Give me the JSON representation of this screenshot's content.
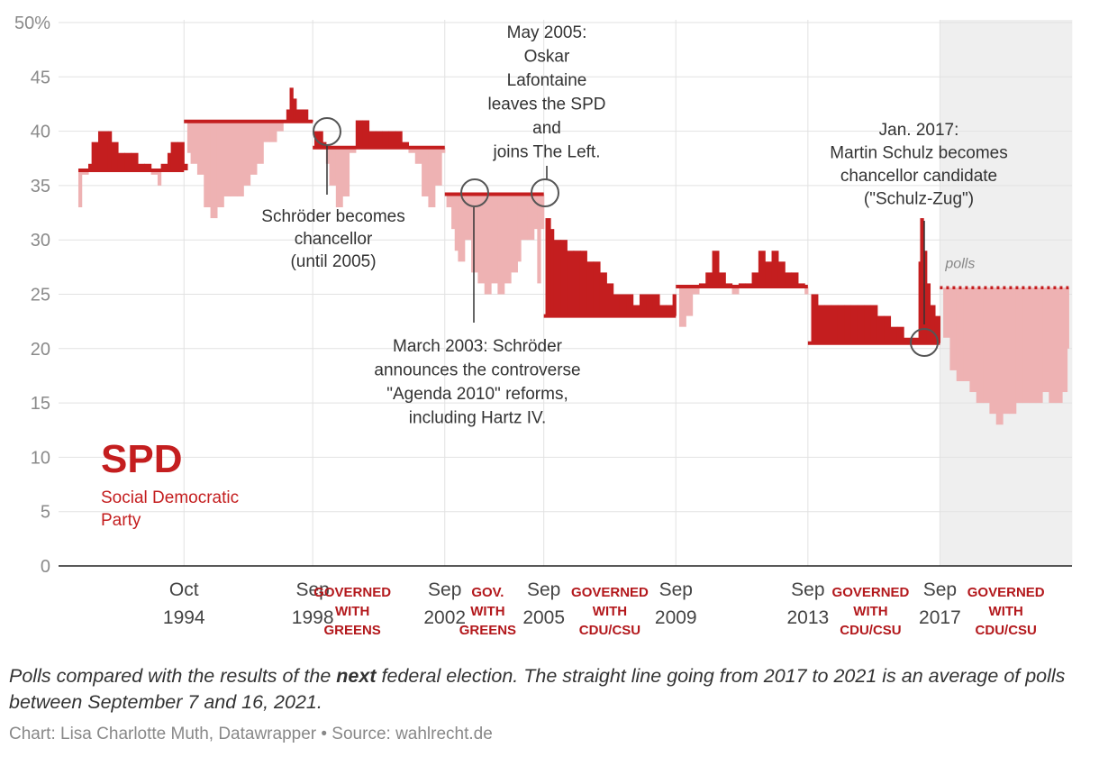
{
  "chart_data": {
    "type": "area",
    "title": "SPD",
    "subtitle": "Social Democratic Party",
    "y_tick_labels": [
      "50%",
      "45",
      "40",
      "35",
      "30",
      "25",
      "20",
      "15",
      "10",
      "5",
      "0"
    ],
    "ylim": [
      0,
      50
    ],
    "xlim": [
      1991.0,
      2021.7
    ],
    "x_ticks": [
      {
        "month": "Oct",
        "year": "1994",
        "x": 1994.8
      },
      {
        "month": "Sep",
        "year": "1998",
        "x": 1998.7
      },
      {
        "month": "Sep",
        "year": "2002",
        "x": 2002.7
      },
      {
        "month": "Sep",
        "year": "2005",
        "x": 2005.7
      },
      {
        "month": "Sep",
        "year": "2009",
        "x": 2009.7
      },
      {
        "month": "Sep",
        "year": "2013",
        "x": 2013.7
      },
      {
        "month": "Sep",
        "year": "2017",
        "x": 2017.7
      }
    ],
    "election_results": [
      {
        "from": 1991.6,
        "to": 1994.8,
        "value": 36.4
      },
      {
        "from": 1994.8,
        "to": 1998.7,
        "value": 40.9
      },
      {
        "from": 1998.7,
        "to": 2002.7,
        "value": 38.5
      },
      {
        "from": 2002.7,
        "to": 2005.7,
        "value": 34.2
      },
      {
        "from": 2005.7,
        "to": 2009.7,
        "value": 23.0
      },
      {
        "from": 2009.7,
        "to": 2013.7,
        "value": 25.7
      },
      {
        "from": 2013.7,
        "to": 2017.7,
        "value": 20.5
      }
    ],
    "poll_average": {
      "from": 2017.7,
      "to": 2021.6,
      "value": 25.6,
      "label": "polls"
    },
    "polls": [
      [
        1991.6,
        33
      ],
      [
        1991.7,
        36
      ],
      [
        1991.9,
        37
      ],
      [
        1992.0,
        39
      ],
      [
        1992.2,
        40
      ],
      [
        1992.5,
        40
      ],
      [
        1992.6,
        39
      ],
      [
        1992.8,
        38
      ],
      [
        1993.0,
        38
      ],
      [
        1993.2,
        38
      ],
      [
        1993.4,
        37
      ],
      [
        1993.6,
        37
      ],
      [
        1993.8,
        36
      ],
      [
        1994.0,
        35
      ],
      [
        1994.1,
        37
      ],
      [
        1994.3,
        38
      ],
      [
        1994.4,
        39
      ],
      [
        1994.6,
        39
      ],
      [
        1994.8,
        37
      ],
      [
        1994.9,
        38
      ],
      [
        1995.0,
        37
      ],
      [
        1995.2,
        36
      ],
      [
        1995.4,
        33
      ],
      [
        1995.6,
        32
      ],
      [
        1995.8,
        33
      ],
      [
        1996.0,
        34
      ],
      [
        1996.2,
        34
      ],
      [
        1996.4,
        34
      ],
      [
        1996.6,
        35
      ],
      [
        1996.8,
        36
      ],
      [
        1997.0,
        37
      ],
      [
        1997.2,
        39
      ],
      [
        1997.4,
        39
      ],
      [
        1997.6,
        40
      ],
      [
        1997.8,
        41
      ],
      [
        1997.9,
        42
      ],
      [
        1998.0,
        44
      ],
      [
        1998.1,
        43
      ],
      [
        1998.2,
        42
      ],
      [
        1998.4,
        42
      ],
      [
        1998.55,
        41
      ],
      [
        1998.75,
        40
      ],
      [
        1998.9,
        40
      ],
      [
        1999.0,
        39
      ],
      [
        1999.1,
        37
      ],
      [
        1999.2,
        35
      ],
      [
        1999.4,
        33
      ],
      [
        1999.6,
        34
      ],
      [
        1999.8,
        38
      ],
      [
        2000.0,
        41
      ],
      [
        2000.2,
        41
      ],
      [
        2000.4,
        40
      ],
      [
        2000.6,
        40
      ],
      [
        2000.8,
        40
      ],
      [
        2001.0,
        40
      ],
      [
        2001.2,
        40
      ],
      [
        2001.4,
        39
      ],
      [
        2001.6,
        38
      ],
      [
        2001.8,
        37
      ],
      [
        2002.0,
        34
      ],
      [
        2002.2,
        33
      ],
      [
        2002.4,
        35
      ],
      [
        2002.6,
        38
      ],
      [
        2002.75,
        33
      ],
      [
        2002.9,
        31
      ],
      [
        2003.0,
        29
      ],
      [
        2003.1,
        28
      ],
      [
        2003.3,
        30
      ],
      [
        2003.5,
        27
      ],
      [
        2003.7,
        26
      ],
      [
        2003.9,
        25
      ],
      [
        2004.1,
        26
      ],
      [
        2004.3,
        25
      ],
      [
        2004.5,
        26
      ],
      [
        2004.7,
        27
      ],
      [
        2004.9,
        28
      ],
      [
        2005.0,
        30
      ],
      [
        2005.2,
        30
      ],
      [
        2005.4,
        31
      ],
      [
        2005.5,
        26
      ],
      [
        2005.6,
        31
      ],
      [
        2005.75,
        32
      ],
      [
        2005.9,
        31
      ],
      [
        2006.0,
        30
      ],
      [
        2006.2,
        30
      ],
      [
        2006.4,
        29
      ],
      [
        2006.6,
        29
      ],
      [
        2006.8,
        29
      ],
      [
        2007.0,
        28
      ],
      [
        2007.2,
        28
      ],
      [
        2007.4,
        27
      ],
      [
        2007.6,
        26
      ],
      [
        2007.8,
        25
      ],
      [
        2008.0,
        25
      ],
      [
        2008.2,
        25
      ],
      [
        2008.4,
        24
      ],
      [
        2008.6,
        25
      ],
      [
        2008.8,
        25
      ],
      [
        2009.0,
        25
      ],
      [
        2009.2,
        24
      ],
      [
        2009.4,
        24
      ],
      [
        2009.6,
        25
      ],
      [
        2009.8,
        22
      ],
      [
        2010.0,
        23
      ],
      [
        2010.2,
        25
      ],
      [
        2010.4,
        26
      ],
      [
        2010.6,
        27
      ],
      [
        2010.8,
        29
      ],
      [
        2011.0,
        27
      ],
      [
        2011.2,
        26
      ],
      [
        2011.4,
        25
      ],
      [
        2011.6,
        26
      ],
      [
        2011.8,
        26
      ],
      [
        2012.0,
        27
      ],
      [
        2012.2,
        29
      ],
      [
        2012.4,
        28
      ],
      [
        2012.6,
        29
      ],
      [
        2012.8,
        28
      ],
      [
        2013.0,
        27
      ],
      [
        2013.2,
        27
      ],
      [
        2013.4,
        26
      ],
      [
        2013.6,
        25
      ],
      [
        2013.8,
        25
      ],
      [
        2014.0,
        24
      ],
      [
        2014.2,
        24
      ],
      [
        2014.4,
        24
      ],
      [
        2014.6,
        24
      ],
      [
        2014.8,
        24
      ],
      [
        2015.0,
        24
      ],
      [
        2015.2,
        24
      ],
      [
        2015.4,
        24
      ],
      [
        2015.6,
        24
      ],
      [
        2015.8,
        23
      ],
      [
        2016.0,
        23
      ],
      [
        2016.2,
        22
      ],
      [
        2016.4,
        22
      ],
      [
        2016.6,
        21
      ],
      [
        2016.8,
        21
      ],
      [
        2016.9,
        21
      ],
      [
        2017.05,
        28
      ],
      [
        2017.1,
        32
      ],
      [
        2017.2,
        29
      ],
      [
        2017.3,
        26
      ],
      [
        2017.4,
        24
      ],
      [
        2017.55,
        23
      ],
      [
        2017.8,
        21
      ],
      [
        2018.0,
        18
      ],
      [
        2018.2,
        17
      ],
      [
        2018.4,
        17
      ],
      [
        2018.6,
        16
      ],
      [
        2018.8,
        15
      ],
      [
        2019.0,
        15
      ],
      [
        2019.2,
        14
      ],
      [
        2019.4,
        13
      ],
      [
        2019.6,
        14
      ],
      [
        2019.8,
        14
      ],
      [
        2020.0,
        15
      ],
      [
        2020.2,
        15
      ],
      [
        2020.4,
        15
      ],
      [
        2020.6,
        15
      ],
      [
        2020.8,
        16
      ],
      [
        2021.0,
        15
      ],
      [
        2021.2,
        15
      ],
      [
        2021.4,
        16
      ],
      [
        2021.55,
        20
      ]
    ],
    "annotations": [
      {
        "lines": [
          "Schröder becomes",
          "chancellor",
          "(until 2005)"
        ]
      },
      {
        "lines": [
          "May 2005:",
          "Oskar",
          "Lafontaine",
          "leaves the SPD",
          "and",
          "joins The Left."
        ]
      },
      {
        "lines": [
          "March 2003: Schröder",
          "announces the controverse",
          "\"Agenda 2010\" reforms,",
          "including Hartz IV."
        ]
      },
      {
        "lines": [
          "Jan. 2017:",
          "Martin Schulz becomes",
          "chancellor candidate",
          "(\"Schulz-Zug\")"
        ]
      }
    ],
    "governments": [
      {
        "lines": [
          "GOVERNED",
          "WITH",
          "GREENS"
        ]
      },
      {
        "lines": [
          "GOV.",
          "WITH",
          "GREENS"
        ]
      },
      {
        "lines": [
          "GOVERNED",
          "WITH",
          "CDU/CSU"
        ]
      },
      {
        "lines": [
          "GOVERNED",
          "WITH",
          "CDU/CSU"
        ]
      },
      {
        "lines": [
          "GOVERNED",
          "WITH",
          "CDU/CSU"
        ]
      }
    ],
    "colors": {
      "above": "#c41e1f",
      "below": "#eeb2b3",
      "result_line": "#c41e1f",
      "forecast_band": "#efefef",
      "grid": "#e2e2e2"
    }
  },
  "party": {
    "abbr": "SPD",
    "full": "Social Democratic Party"
  },
  "notes": {
    "part1": "Polls compared with the results of the ",
    "emph": "next",
    "part2": " federal election. The straight line going from 2017 to 2021 is an average of polls between September 7 and 16, 2021."
  },
  "credit": "Chart: Lisa Charlotte Muth, Datawrapper • Source: wahlrecht.de"
}
